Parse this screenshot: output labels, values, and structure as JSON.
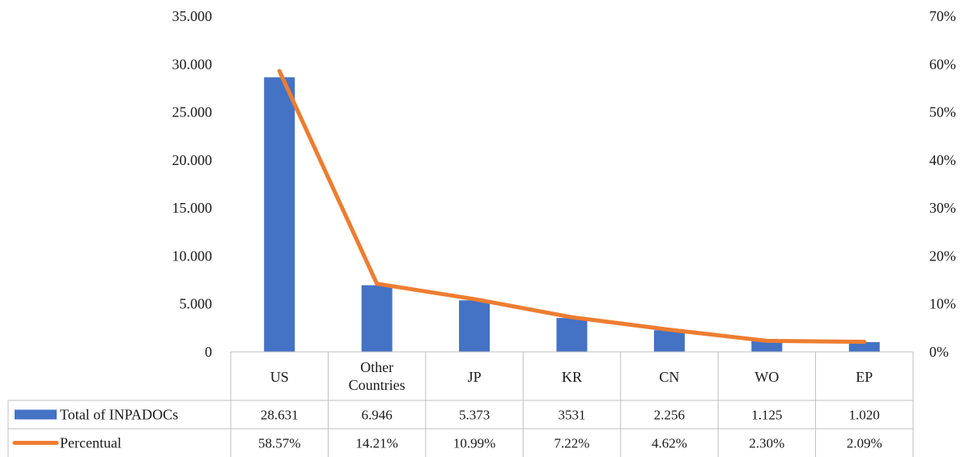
{
  "chart_data": {
    "type": "bar",
    "categories": [
      "US",
      "Other Countries",
      "JP",
      "KR",
      "CN",
      "WO",
      "EP"
    ],
    "series": [
      {
        "name": "Total of INPADOCs",
        "type": "bar",
        "axis": "left",
        "color": "#4472C4",
        "values": [
          28631,
          6946,
          5373,
          3531,
          2256,
          1125,
          1020
        ],
        "labels": [
          "28.631",
          "6.946",
          "5.373",
          "3531",
          "2.256",
          "1.125",
          "1.020"
        ]
      },
      {
        "name": "Percentual",
        "type": "line",
        "axis": "right",
        "color": "#ED7D31",
        "values": [
          58.57,
          14.21,
          10.99,
          7.22,
          4.62,
          2.3,
          2.09
        ],
        "labels": [
          "58.57%",
          "14.21%",
          "10.99%",
          "7.22%",
          "4.62%",
          "2.30%",
          "2.09%"
        ]
      }
    ],
    "ylim": [
      0,
      35000
    ],
    "y2lim": [
      0,
      70
    ],
    "yticks": [
      "0",
      "5.000",
      "10.000",
      "15.000",
      "20.000",
      "25.000",
      "30.000",
      "35.000"
    ],
    "y2ticks": [
      "0%",
      "10%",
      "20%",
      "30%",
      "40%",
      "50%",
      "60%",
      "70%"
    ],
    "grid": false,
    "legend": "data-table"
  }
}
